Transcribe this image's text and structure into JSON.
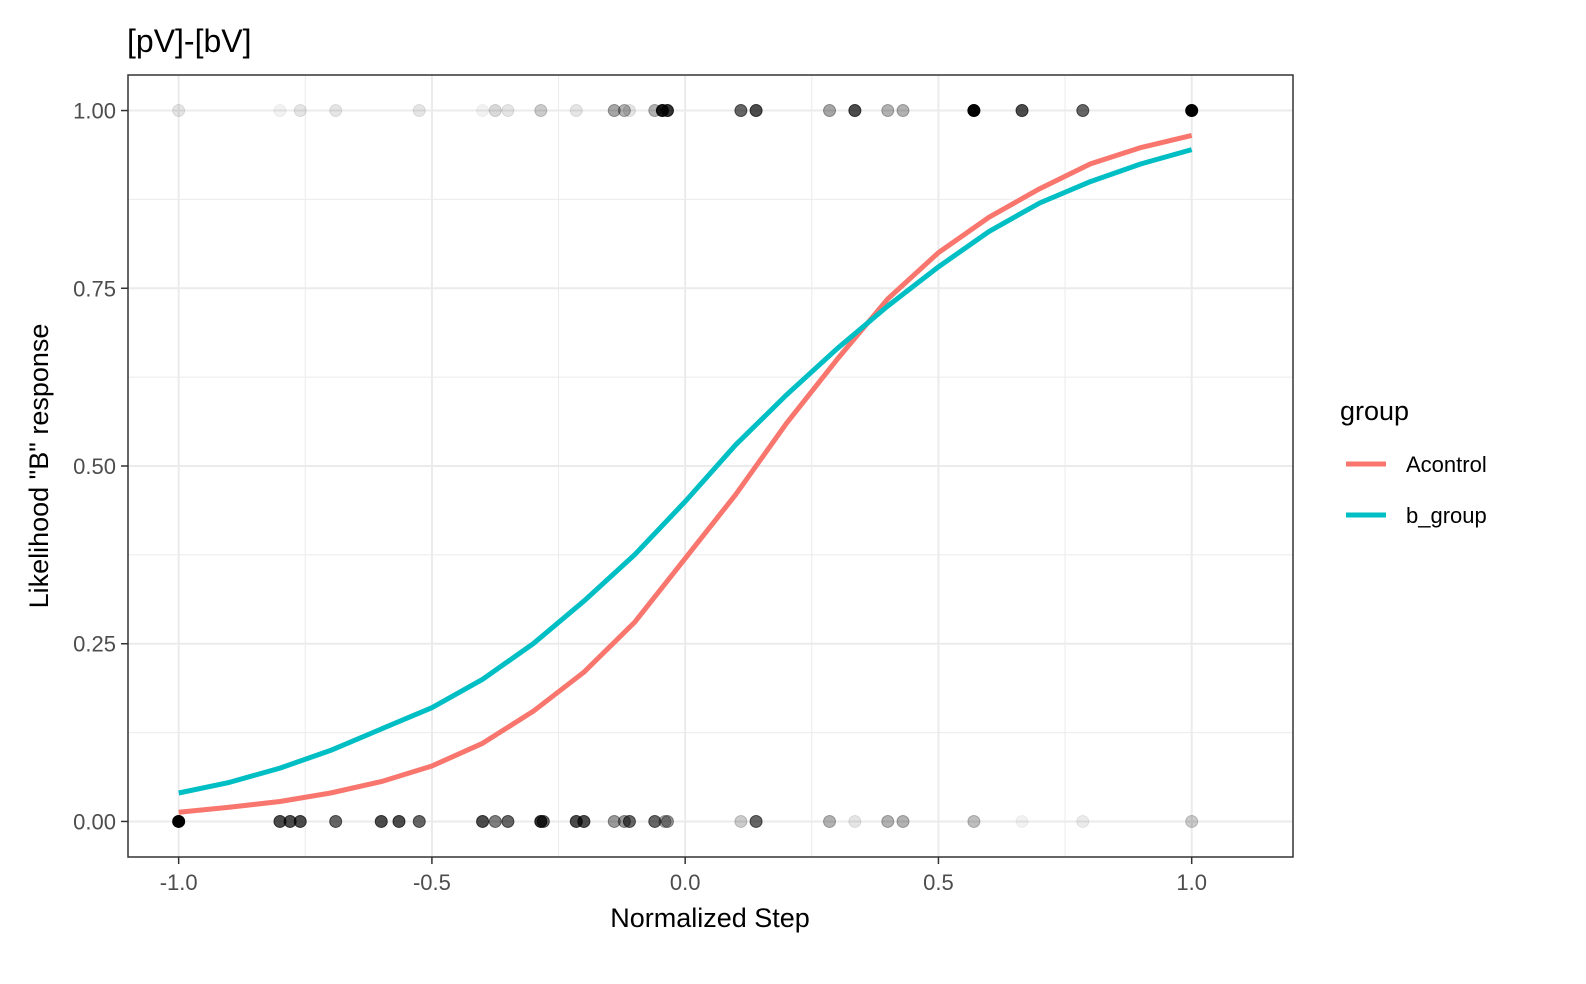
{
  "chart_data": {
    "type": "scatter",
    "title": "[pV]-[bV]",
    "xlabel": "Normalized Step",
    "ylabel": "Likelihood \"B\" response",
    "xlim": [
      -1.1,
      1.2
    ],
    "ylim": [
      -0.05,
      1.05
    ],
    "x_ticks": [
      -1.0,
      -0.5,
      0.0,
      0.5,
      1.0
    ],
    "x_tick_labels": [
      "-1.0",
      "-0.5",
      "0.0",
      "0.5",
      "1.0"
    ],
    "y_ticks": [
      0.0,
      0.25,
      0.5,
      0.75,
      1.0
    ],
    "y_tick_labels": [
      "0.00",
      "0.25",
      "0.50",
      "0.75",
      "1.00"
    ],
    "grid": true,
    "legend": {
      "title": "group",
      "placement": "right",
      "entries": [
        {
          "label": "Acontrol",
          "color": "#F8766D"
        },
        {
          "label": "b_group",
          "color": "#00BFC4"
        }
      ]
    },
    "series": [
      {
        "name": "Acontrol",
        "color": "#F8766D",
        "kind": "line",
        "x": [
          -1.0,
          -0.9,
          -0.8,
          -0.7,
          -0.6,
          -0.5,
          -0.4,
          -0.3,
          -0.2,
          -0.1,
          0.0,
          0.1,
          0.2,
          0.3,
          0.4,
          0.5,
          0.6,
          0.7,
          0.8,
          0.9,
          1.0
        ],
        "y": [
          0.013,
          0.02,
          0.028,
          0.04,
          0.056,
          0.078,
          0.11,
          0.155,
          0.21,
          0.28,
          0.37,
          0.46,
          0.56,
          0.65,
          0.735,
          0.8,
          0.85,
          0.89,
          0.925,
          0.948,
          0.965
        ]
      },
      {
        "name": "b_group",
        "color": "#00BFC4",
        "kind": "line",
        "x": [
          -1.0,
          -0.9,
          -0.8,
          -0.7,
          -0.6,
          -0.5,
          -0.4,
          -0.3,
          -0.2,
          -0.1,
          0.0,
          0.1,
          0.2,
          0.3,
          0.4,
          0.5,
          0.6,
          0.7,
          0.8,
          0.9,
          1.0
        ],
        "y": [
          0.04,
          0.055,
          0.075,
          0.1,
          0.13,
          0.16,
          0.2,
          0.25,
          0.31,
          0.375,
          0.45,
          0.53,
          0.6,
          0.665,
          0.725,
          0.78,
          0.83,
          0.87,
          0.9,
          0.925,
          0.945
        ]
      },
      {
        "name": "",
        "color": "#000000",
        "kind": "points",
        "points": [
          {
            "x": -1.0,
            "y": 1,
            "a": 0.1
          },
          {
            "x": -0.8,
            "y": 1,
            "a": 0.05
          },
          {
            "x": -0.76,
            "y": 1,
            "a": 0.1
          },
          {
            "x": -0.69,
            "y": 1,
            "a": 0.1
          },
          {
            "x": -0.525,
            "y": 1,
            "a": 0.1
          },
          {
            "x": -0.4,
            "y": 1,
            "a": 0.05
          },
          {
            "x": -0.375,
            "y": 1,
            "a": 0.15
          },
          {
            "x": -0.35,
            "y": 1,
            "a": 0.1
          },
          {
            "x": -0.285,
            "y": 1,
            "a": 0.2
          },
          {
            "x": -0.215,
            "y": 1,
            "a": 0.1
          },
          {
            "x": -0.14,
            "y": 1,
            "a": 0.35
          },
          {
            "x": -0.12,
            "y": 1,
            "a": 0.3
          },
          {
            "x": -0.11,
            "y": 1,
            "a": 0.1
          },
          {
            "x": -0.06,
            "y": 1,
            "a": 0.3
          },
          {
            "x": -0.045,
            "y": 1,
            "a": 0.9
          },
          {
            "x": -0.035,
            "y": 1,
            "a": 0.8
          },
          {
            "x": 0.11,
            "y": 1,
            "a": 0.6
          },
          {
            "x": 0.14,
            "y": 1,
            "a": 0.7
          },
          {
            "x": 0.285,
            "y": 1,
            "a": 0.35
          },
          {
            "x": 0.335,
            "y": 1,
            "a": 0.7
          },
          {
            "x": 0.4,
            "y": 1,
            "a": 0.3
          },
          {
            "x": 0.43,
            "y": 1,
            "a": 0.3
          },
          {
            "x": 0.57,
            "y": 1,
            "a": 1.0
          },
          {
            "x": 0.665,
            "y": 1,
            "a": 0.7
          },
          {
            "x": 0.785,
            "y": 1,
            "a": 0.6
          },
          {
            "x": 1.0,
            "y": 1,
            "a": 1.0
          },
          {
            "x": -1.0,
            "y": 0,
            "a": 1.0
          },
          {
            "x": -0.8,
            "y": 0,
            "a": 0.7
          },
          {
            "x": -0.78,
            "y": 0,
            "a": 0.7
          },
          {
            "x": -0.76,
            "y": 0,
            "a": 0.7
          },
          {
            "x": -0.69,
            "y": 0,
            "a": 0.6
          },
          {
            "x": -0.6,
            "y": 0,
            "a": 0.7
          },
          {
            "x": -0.565,
            "y": 0,
            "a": 0.7
          },
          {
            "x": -0.525,
            "y": 0,
            "a": 0.6
          },
          {
            "x": -0.4,
            "y": 0,
            "a": 0.7
          },
          {
            "x": -0.375,
            "y": 0,
            "a": 0.5
          },
          {
            "x": -0.35,
            "y": 0,
            "a": 0.6
          },
          {
            "x": -0.285,
            "y": 0,
            "a": 0.8
          },
          {
            "x": -0.28,
            "y": 0,
            "a": 0.6
          },
          {
            "x": -0.215,
            "y": 0,
            "a": 0.7
          },
          {
            "x": -0.2,
            "y": 0,
            "a": 0.7
          },
          {
            "x": -0.14,
            "y": 0,
            "a": 0.4
          },
          {
            "x": -0.12,
            "y": 0,
            "a": 0.4
          },
          {
            "x": -0.11,
            "y": 0,
            "a": 0.6
          },
          {
            "x": -0.06,
            "y": 0,
            "a": 0.6
          },
          {
            "x": -0.04,
            "y": 0,
            "a": 0.3
          },
          {
            "x": -0.035,
            "y": 0,
            "a": 0.4
          },
          {
            "x": 0.11,
            "y": 0,
            "a": 0.2
          },
          {
            "x": 0.14,
            "y": 0,
            "a": 0.6
          },
          {
            "x": 0.285,
            "y": 0,
            "a": 0.3
          },
          {
            "x": 0.335,
            "y": 0,
            "a": 0.1
          },
          {
            "x": 0.4,
            "y": 0,
            "a": 0.3
          },
          {
            "x": 0.43,
            "y": 0,
            "a": 0.3
          },
          {
            "x": 0.57,
            "y": 0,
            "a": 0.25
          },
          {
            "x": 0.665,
            "y": 0,
            "a": 0.05
          },
          {
            "x": 0.785,
            "y": 0,
            "a": 0.08
          },
          {
            "x": 1.0,
            "y": 0,
            "a": 0.2
          }
        ]
      }
    ]
  }
}
